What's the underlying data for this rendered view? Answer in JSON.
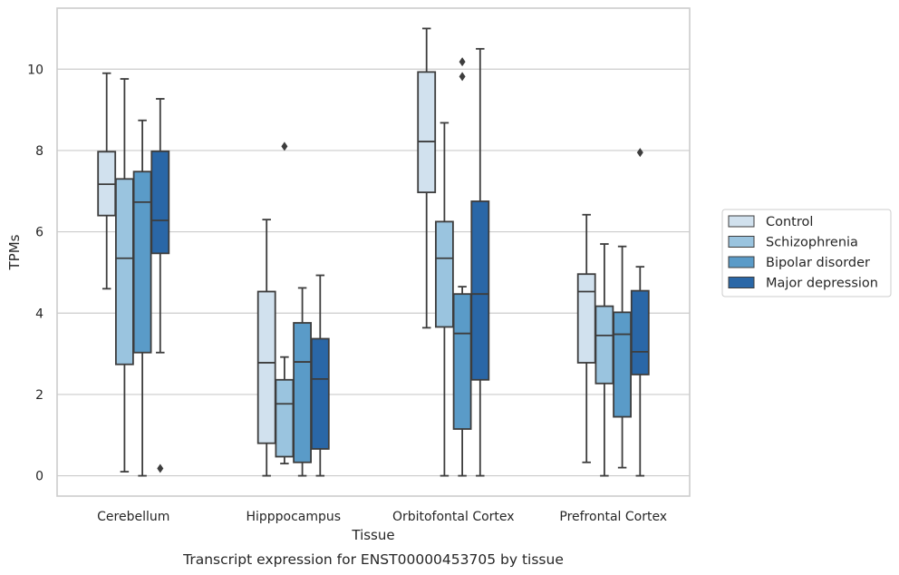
{
  "chart_data": {
    "type": "box",
    "caption": "Transcript expression for ENST00000453705 by tissue",
    "xlabel": "Tissue",
    "ylabel": "TPMs",
    "ylim": [
      -0.5,
      11.5
    ],
    "yticks": [
      0,
      2,
      4,
      6,
      8,
      10
    ],
    "grid": "horizontal",
    "legend_position": "right",
    "categories": [
      "Cerebellum",
      "Hipppocampus",
      "Orbitofontal Cortex",
      "Prefrontal Cortex"
    ],
    "series": [
      {
        "name": "Control",
        "color": "#d1e1ee",
        "boxes": [
          {
            "whisker_low": 4.6,
            "q1": 6.4,
            "median": 7.17,
            "q3": 7.97,
            "whisker_high": 9.9,
            "outliers": []
          },
          {
            "whisker_low": 0.0,
            "q1": 0.8,
            "median": 2.78,
            "q3": 4.53,
            "whisker_high": 6.3,
            "outliers": []
          },
          {
            "whisker_low": 3.64,
            "q1": 6.97,
            "median": 8.22,
            "q3": 9.93,
            "whisker_high": 11.0,
            "outliers": []
          },
          {
            "whisker_low": 0.33,
            "q1": 2.78,
            "median": 4.53,
            "q3": 4.96,
            "whisker_high": 6.42,
            "outliers": []
          }
        ]
      },
      {
        "name": "Schizophrenia",
        "color": "#9ac4df",
        "boxes": [
          {
            "whisker_low": 0.1,
            "q1": 2.74,
            "median": 5.35,
            "q3": 7.3,
            "whisker_high": 9.76,
            "outliers": []
          },
          {
            "whisker_low": 0.3,
            "q1": 0.47,
            "median": 1.77,
            "q3": 2.36,
            "whisker_high": 2.92,
            "outliers": [
              8.1
            ]
          },
          {
            "whisker_low": 0.0,
            "q1": 3.66,
            "median": 5.35,
            "q3": 6.25,
            "whisker_high": 8.68,
            "outliers": []
          },
          {
            "whisker_low": 0.0,
            "q1": 2.27,
            "median": 3.45,
            "q3": 4.17,
            "whisker_high": 5.7,
            "outliers": []
          }
        ]
      },
      {
        "name": "Bipolar disorder",
        "color": "#5a9bc8",
        "boxes": [
          {
            "whisker_low": 0.0,
            "q1": 3.03,
            "median": 6.73,
            "q3": 7.48,
            "whisker_high": 8.74,
            "outliers": []
          },
          {
            "whisker_low": 0.0,
            "q1": 0.33,
            "median": 2.8,
            "q3": 3.76,
            "whisker_high": 4.62,
            "outliers": []
          },
          {
            "whisker_low": 0.0,
            "q1": 1.15,
            "median": 3.5,
            "q3": 4.47,
            "whisker_high": 4.65,
            "outliers": [
              9.82,
              10.18
            ]
          },
          {
            "whisker_low": 0.2,
            "q1": 1.45,
            "median": 3.48,
            "q3": 4.02,
            "whisker_high": 5.64,
            "outliers": []
          }
        ]
      },
      {
        "name": "Major depression",
        "color": "#2a67a7",
        "boxes": [
          {
            "whisker_low": 3.03,
            "q1": 5.47,
            "median": 6.28,
            "q3": 7.98,
            "whisker_high": 9.27,
            "outliers": [
              0.18
            ]
          },
          {
            "whisker_low": 0.0,
            "q1": 0.66,
            "median": 2.38,
            "q3": 3.37,
            "whisker_high": 4.93,
            "outliers": []
          },
          {
            "whisker_low": 0.0,
            "q1": 2.36,
            "median": 4.47,
            "q3": 6.75,
            "whisker_high": 10.5,
            "outliers": []
          },
          {
            "whisker_low": 0.0,
            "q1": 2.49,
            "median": 3.05,
            "q3": 4.55,
            "whisker_high": 5.14,
            "outliers": [
              7.95
            ]
          }
        ]
      }
    ]
  }
}
